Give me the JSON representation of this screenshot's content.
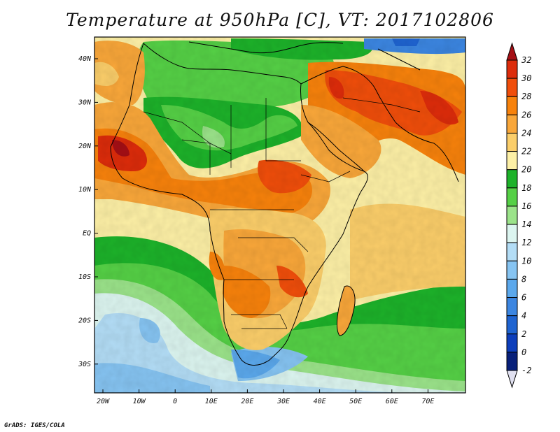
{
  "title": "Temperature at 950hPa [C], VT: 2017102806",
  "credit": "GrADS: IGES/COLA",
  "lat_ticks": [
    "40N",
    "30N",
    "20N",
    "10N",
    "EQ",
    "10S",
    "20S",
    "30S"
  ],
  "lon_ticks": [
    "20W",
    "10W",
    "0",
    "10E",
    "20E",
    "30E",
    "40E",
    "50E",
    "60E",
    "70E"
  ],
  "colorbar": {
    "labels": [
      "32",
      "30",
      "28",
      "26",
      "24",
      "22",
      "20",
      "18",
      "16",
      "14",
      "12",
      "10",
      "8",
      "6",
      "4",
      "2",
      "0",
      "-2"
    ],
    "colors": [
      "#a50f15",
      "#dd2c0b",
      "#f04e0b",
      "#f7820c",
      "#f9a73a",
      "#fbce6a",
      "#fdf0a6",
      "#1db22a",
      "#55d046",
      "#9be38a",
      "#dcf5f0",
      "#b3ddf6",
      "#86c4f2",
      "#5ba8ec",
      "#3c86e1",
      "#1f64d1",
      "#0d3ebb",
      "#08207a",
      "#e0e0f0"
    ]
  }
}
